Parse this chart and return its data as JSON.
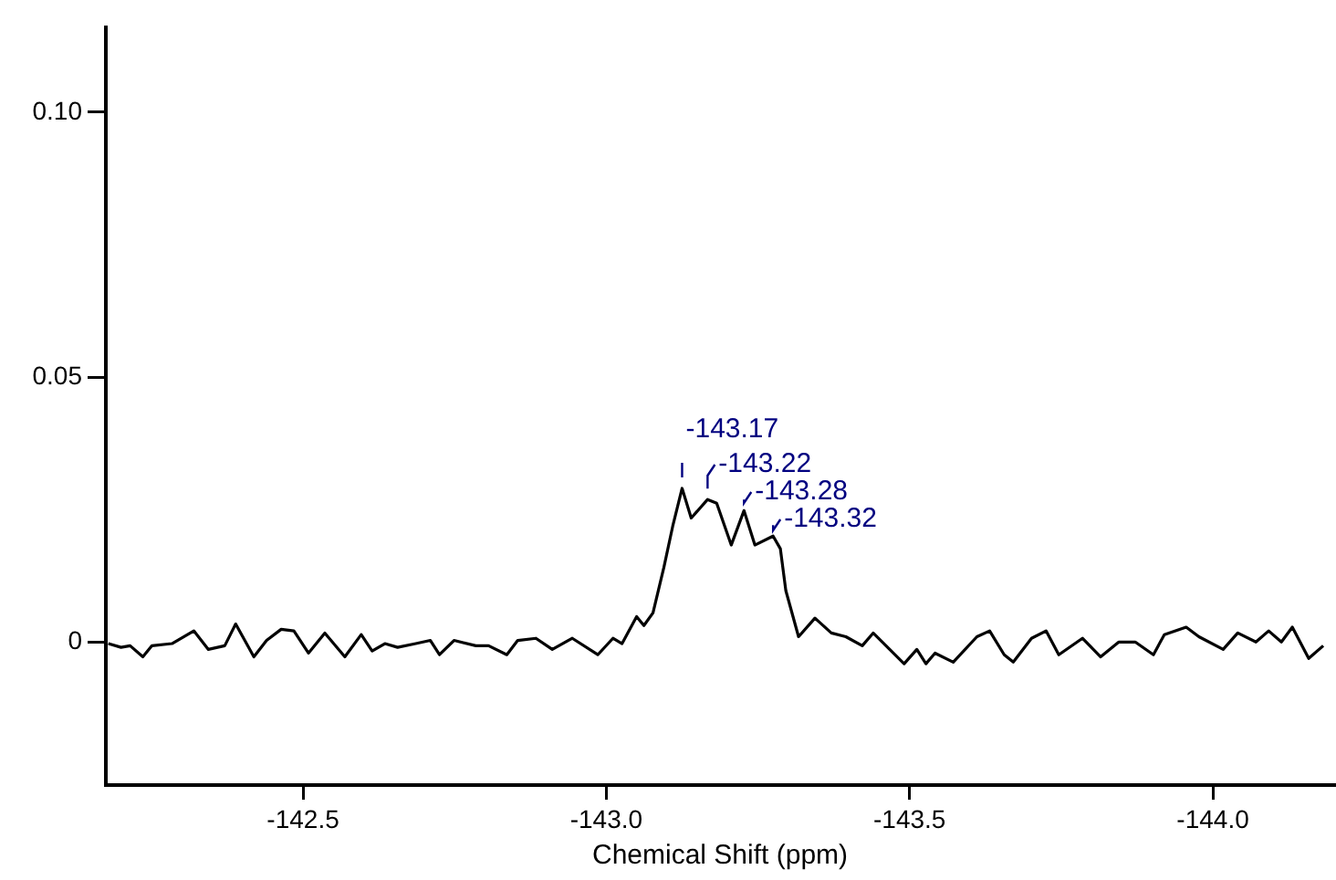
{
  "chart_data": {
    "type": "line",
    "xlabel": "Chemical Shift (ppm)",
    "xlim": [
      -142.175,
      -144.2
    ],
    "ylim": [
      -0.027,
      0.116
    ],
    "xticks": [
      {
        "value": -142.5,
        "label": "-142.5"
      },
      {
        "value": -143.0,
        "label": "-143.0"
      },
      {
        "value": -143.5,
        "label": "-143.5"
      },
      {
        "value": -144.0,
        "label": "-144.0"
      }
    ],
    "yticks": [
      0,
      0.05,
      {
        "value": 0.1,
        "label": "0.10"
      }
    ],
    "grid": false,
    "legend": false,
    "marker": "none",
    "line_style": "solid",
    "x": [
      -142.179,
      -142.2,
      -142.215,
      -142.236,
      -142.251,
      -142.284,
      -142.32,
      -142.344,
      -142.371,
      -142.389,
      -142.419,
      -142.44,
      -142.464,
      -142.485,
      -142.509,
      -142.536,
      -142.569,
      -142.596,
      -142.614,
      -142.635,
      -142.656,
      -142.686,
      -142.71,
      -142.725,
      -142.749,
      -142.785,
      -142.806,
      -142.836,
      -142.854,
      -142.884,
      -142.911,
      -142.944,
      -142.986,
      -143.011,
      -143.026,
      -143.05,
      -143.062,
      -143.077,
      -143.095,
      -143.11,
      -143.125,
      -143.14,
      -143.167,
      -143.182,
      -143.206,
      -143.227,
      -143.245,
      -143.275,
      -143.287,
      -143.296,
      -143.317,
      -143.344,
      -143.371,
      -143.395,
      -143.422,
      -143.44,
      -143.491,
      -143.512,
      -143.527,
      -143.542,
      -143.572,
      -143.611,
      -143.632,
      -143.656,
      -143.671,
      -143.701,
      -143.725,
      -143.746,
      -143.785,
      -143.815,
      -143.845,
      -143.872,
      -143.902,
      -143.92,
      -143.956,
      -143.977,
      -144.017,
      -144.041,
      -144.071,
      -144.092,
      -144.113,
      -144.131,
      -144.158,
      -144.182
    ],
    "series": [
      {
        "color": "#000000",
        "values": [
          -0.0003,
          -0.001,
          -0.0007,
          -0.0028,
          -0.0007,
          -0.0003,
          0.0021,
          -0.0014,
          -0.0007,
          0.0034,
          -0.0028,
          0.0003,
          0.0024,
          0.0021,
          -0.0021,
          0.0017,
          -0.0028,
          0.0014,
          -0.0017,
          -0.0003,
          -0.001,
          -0.0003,
          0.0003,
          -0.0024,
          0.0003,
          -0.0007,
          -0.0007,
          -0.0024,
          0.0003,
          0.0007,
          -0.0014,
          0.0007,
          -0.0024,
          0.0007,
          -0.0003,
          0.0048,
          0.0031,
          0.0055,
          0.0141,
          0.0221,
          0.029,
          0.0234,
          0.0269,
          0.0262,
          0.0183,
          0.0248,
          0.0183,
          0.02,
          0.0176,
          0.0097,
          0.001,
          0.0045,
          0.0017,
          0.001,
          -0.0007,
          0.0017,
          -0.0041,
          -0.0014,
          -0.0041,
          -0.0021,
          -0.0038,
          0.001,
          0.0021,
          -0.0024,
          -0.0038,
          0.0007,
          0.0021,
          -0.0024,
          0.0007,
          -0.0028,
          0,
          0,
          -0.0024,
          0.0014,
          0.0028,
          0.001,
          -0.0014,
          0.0017,
          0,
          0.0021,
          0,
          0.0028,
          -0.0031,
          -0.0007
        ]
      }
    ],
    "annotations": [
      {
        "text": "-143.17",
        "x": -143.125,
        "y": 0.029
      },
      {
        "text": "-143.22",
        "x": -143.167,
        "y": 0.0269
      },
      {
        "text": "-143.28",
        "x": -143.227,
        "y": 0.0248
      },
      {
        "text": "-143.32",
        "x": -143.275,
        "y": 0.02
      }
    ]
  }
}
